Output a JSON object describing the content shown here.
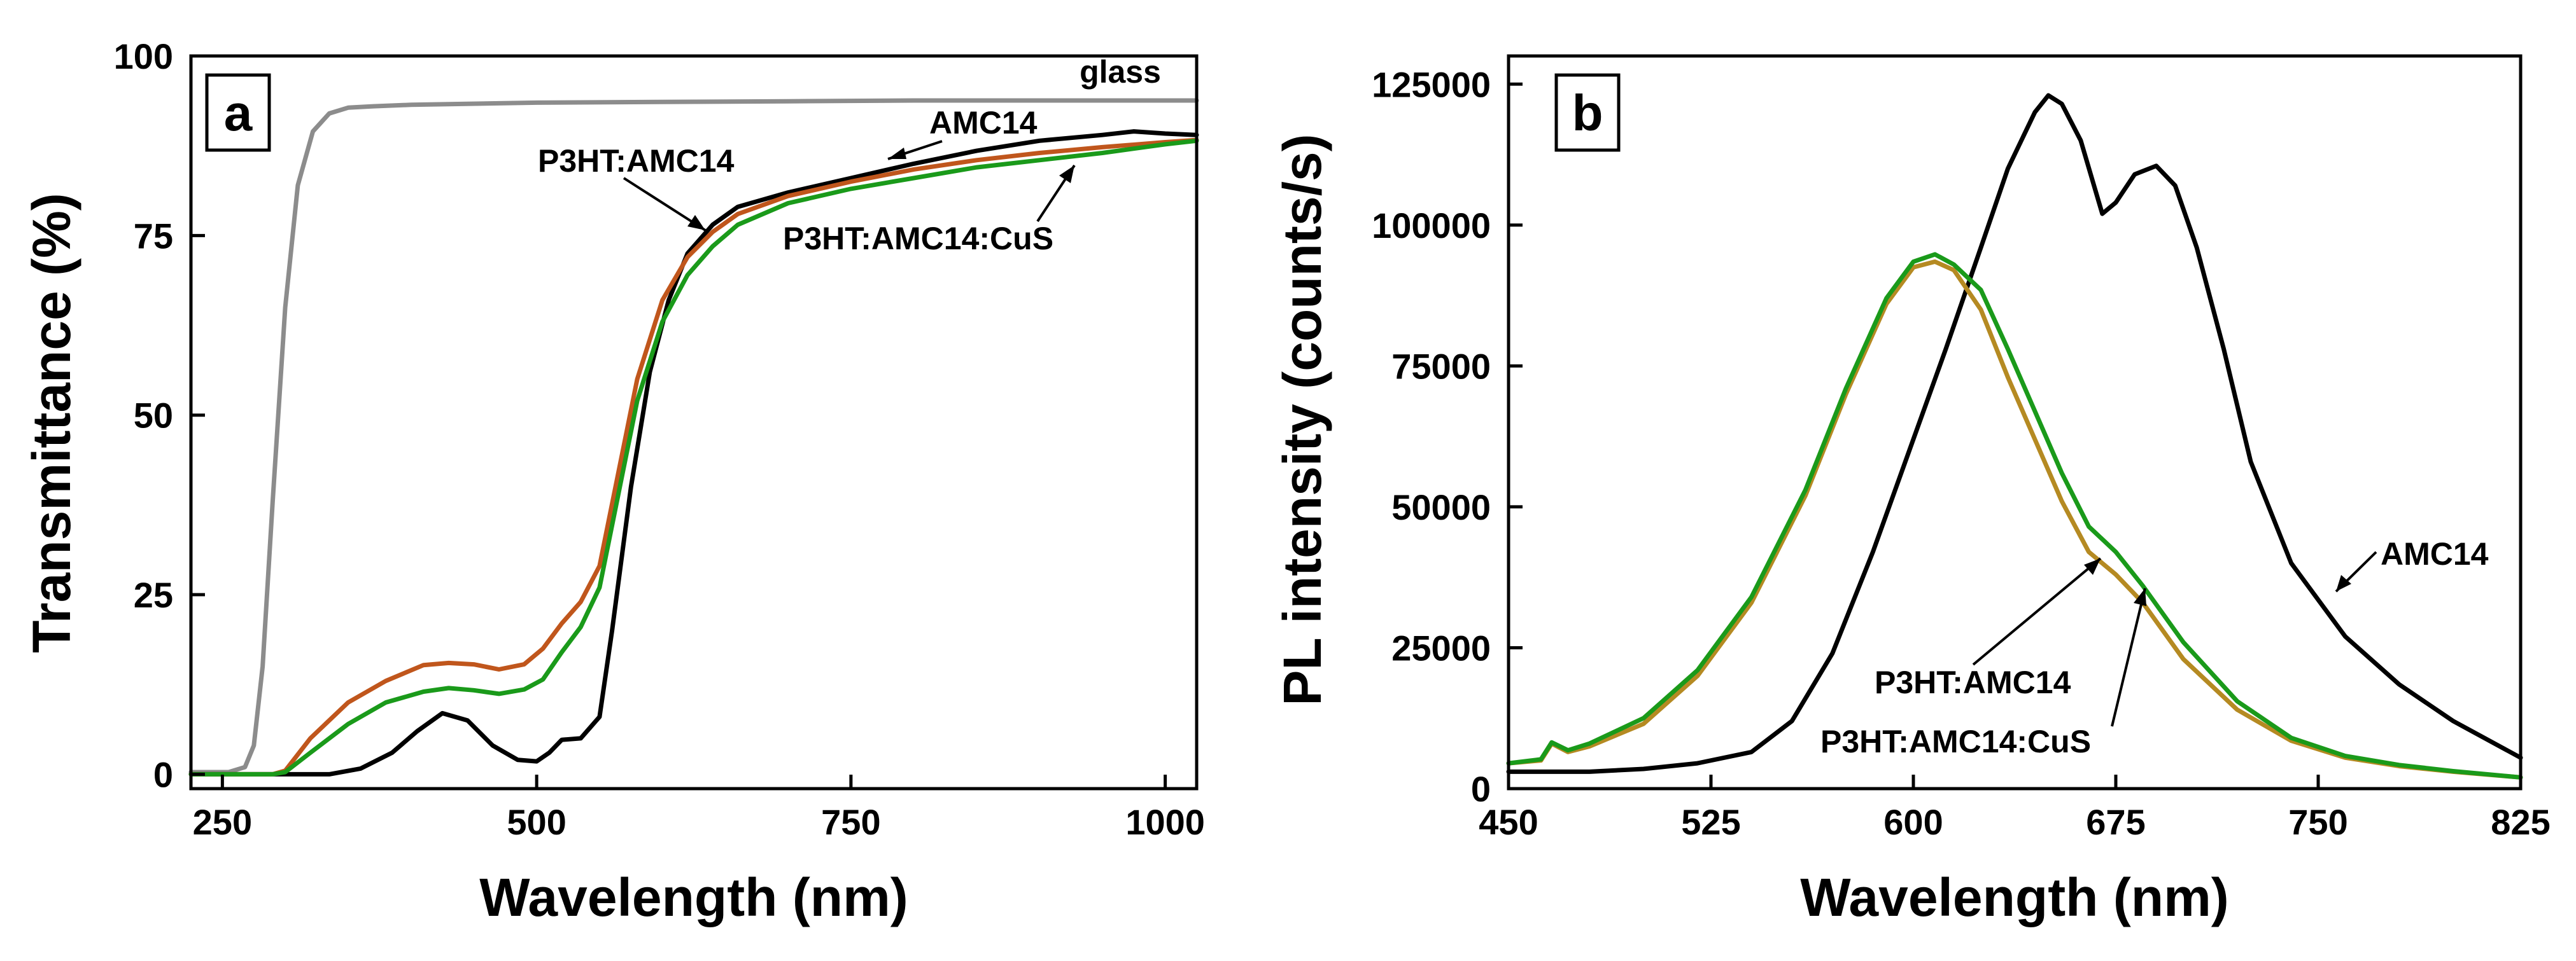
{
  "colors": {
    "glass": "#8c8c8c",
    "AMC14": "#000000",
    "P3HT:AMC14_a": "#c0561c",
    "P3HT:AMC14_b": "#b58a22",
    "P3HT:AMC14:CuS": "#1a9a1a"
  },
  "chart_data": [
    {
      "panel": "a",
      "type": "line",
      "title": "",
      "xlabel": "Wavelength  (nm)",
      "ylabel": "Transmittance  (%)",
      "xlim": [
        225,
        1025
      ],
      "ylim": [
        -2,
        100
      ],
      "xticks": [
        250,
        500,
        750,
        1000
      ],
      "yticks": [
        0,
        25,
        50,
        75,
        100
      ],
      "xtick_labels": [
        "250",
        "500",
        "750",
        "1000"
      ],
      "ytick_labels": [
        "0",
        "25",
        "50",
        "75",
        "100"
      ],
      "legend": "none",
      "annotations": [
        "glass",
        "AMC14",
        "P3HT:AMC14",
        "P3HT:AMC14:CuS"
      ],
      "series": [
        {
          "name": "glass",
          "color_key": "glass",
          "x": [
            225,
            255,
            268,
            275,
            282,
            290,
            300,
            310,
            322,
            335,
            350,
            370,
            400,
            500,
            600,
            700,
            800,
            900,
            1025
          ],
          "y": [
            0.3,
            0.3,
            1,
            4,
            15,
            38,
            65,
            82,
            89.5,
            92,
            92.8,
            93,
            93.2,
            93.5,
            93.6,
            93.7,
            93.8,
            93.8,
            93.8
          ]
        },
        {
          "name": "AMC14",
          "color_key": "AMC14",
          "x": [
            225,
            335,
            360,
            385,
            405,
            425,
            445,
            465,
            485,
            500,
            510,
            520,
            535,
            550,
            560,
            575,
            590,
            605,
            620,
            640,
            660,
            700,
            750,
            800,
            850,
            900,
            950,
            975,
            1000,
            1025
          ],
          "y": [
            0,
            0,
            0.8,
            3,
            6,
            8.5,
            7.5,
            4,
            2,
            1.8,
            3,
            4.8,
            5,
            8,
            20,
            40,
            56,
            66,
            72.5,
            76.5,
            79,
            81,
            83,
            85,
            86.8,
            88.2,
            89,
            89.5,
            89.2,
            89
          ]
        },
        {
          "name": "P3HT:AMC14",
          "color_key": "P3HT:AMC14_a",
          "x": [
            225,
            290,
            300,
            320,
            350,
            380,
            410,
            430,
            450,
            470,
            490,
            505,
            520,
            535,
            550,
            565,
            580,
            600,
            620,
            640,
            660,
            700,
            750,
            800,
            850,
            900,
            950,
            1000,
            1025
          ],
          "y": [
            0,
            0,
            0.5,
            5,
            10,
            13,
            15.2,
            15.5,
            15.3,
            14.6,
            15.3,
            17.5,
            21,
            24,
            29,
            42,
            55,
            66,
            72,
            75.5,
            78,
            80.5,
            82.5,
            84.2,
            85.5,
            86.5,
            87.3,
            88,
            88.3
          ]
        },
        {
          "name": "P3HT:AMC14:CuS",
          "color_key": "P3HT:AMC14:CuS",
          "x": [
            225,
            290,
            300,
            320,
            350,
            380,
            410,
            430,
            450,
            470,
            490,
            505,
            520,
            535,
            550,
            565,
            580,
            600,
            620,
            640,
            660,
            700,
            750,
            800,
            850,
            900,
            950,
            1000,
            1025
          ],
          "y": [
            0,
            0,
            0.3,
            3,
            7,
            10,
            11.5,
            12,
            11.7,
            11.2,
            11.8,
            13.2,
            17,
            20.5,
            26,
            39,
            52,
            63,
            69.5,
            73.5,
            76.5,
            79.5,
            81.5,
            83,
            84.5,
            85.5,
            86.5,
            87.7,
            88.2
          ]
        }
      ]
    },
    {
      "panel": "b",
      "type": "line",
      "title": "",
      "xlabel": "Wavelength  (nm)",
      "ylabel": "PL  intensity  (counts/s)",
      "xlim": [
        450,
        825
      ],
      "ylim": [
        0,
        130000
      ],
      "xticks": [
        450,
        525,
        600,
        675,
        750,
        825
      ],
      "yticks": [
        0,
        25000,
        50000,
        75000,
        100000,
        125000
      ],
      "xtick_labels": [
        "450",
        "525",
        "600",
        "675",
        "750",
        "825"
      ],
      "ytick_labels": [
        "0",
        "25000",
        "50000",
        "75000",
        "100000",
        "125000"
      ],
      "legend": "none",
      "annotations": [
        "AMC14",
        "P3HT:AMC14",
        "P3HT:AMC14:CuS"
      ],
      "series": [
        {
          "name": "AMC14",
          "color_key": "AMC14",
          "x": [
            450,
            480,
            500,
            520,
            540,
            555,
            570,
            585,
            600,
            612,
            625,
            635,
            645,
            650,
            655,
            662,
            670,
            675,
            682,
            690,
            697,
            705,
            715,
            725,
            740,
            760,
            780,
            800,
            825
          ],
          "y": [
            3000,
            3000,
            3500,
            4500,
            6500,
            12000,
            24000,
            42000,
            62000,
            78000,
            96000,
            110000,
            120000,
            123000,
            121500,
            115000,
            102000,
            104000,
            109000,
            110500,
            107000,
            96000,
            78000,
            58000,
            40000,
            27000,
            18500,
            12000,
            5500
          ]
        },
        {
          "name": "P3HT:AMC14",
          "color_key": "P3HT:AMC14_b",
          "x": [
            450,
            462,
            466,
            472,
            480,
            500,
            520,
            540,
            560,
            575,
            590,
            600,
            608,
            615,
            625,
            635,
            645,
            655,
            665,
            675,
            685,
            700,
            720,
            740,
            760,
            780,
            800,
            825
          ],
          "y": [
            4500,
            5000,
            8000,
            6500,
            7500,
            11500,
            20000,
            33000,
            52000,
            70000,
            86000,
            92500,
            93500,
            92000,
            85000,
            73000,
            62000,
            51000,
            42000,
            38000,
            33000,
            23000,
            14000,
            8500,
            5500,
            4000,
            3000,
            2000
          ]
        },
        {
          "name": "P3HT:AMC14:CuS",
          "color_key": "P3HT:AMC14:CuS",
          "x": [
            450,
            462,
            466,
            472,
            480,
            500,
            520,
            540,
            560,
            575,
            590,
            600,
            608,
            615,
            625,
            635,
            645,
            655,
            665,
            675,
            685,
            700,
            720,
            740,
            760,
            780,
            800,
            825
          ],
          "y": [
            4500,
            5200,
            8200,
            6800,
            8000,
            12500,
            21000,
            34000,
            53000,
            71000,
            87000,
            93500,
            94800,
            93000,
            88500,
            78000,
            67000,
            56000,
            46500,
            42000,
            36000,
            26000,
            15500,
            9000,
            5800,
            4200,
            3100,
            2000
          ]
        }
      ]
    }
  ],
  "panels": {
    "a": {
      "letter": "a"
    },
    "b": {
      "letter": "b"
    }
  }
}
